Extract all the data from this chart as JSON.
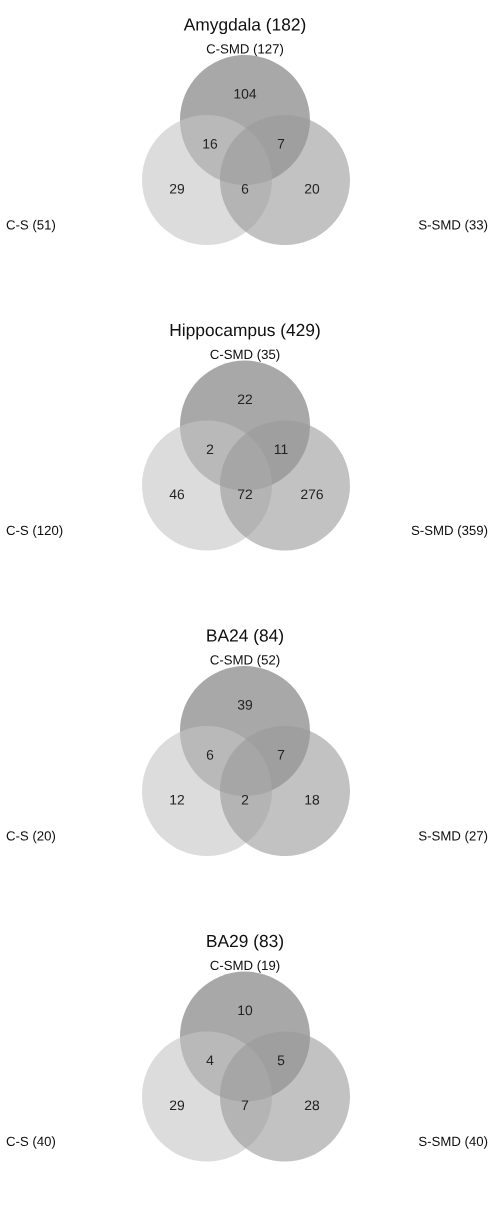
{
  "chart_data": [
    {
      "type": "other",
      "title": "Amygdala (182)",
      "annotations": [
        "C-SMD (127)",
        "C-S (51)",
        "S-SMD (33)"
      ],
      "categories": [
        null,
        null,
        null,
        null,
        null,
        null
      ],
      "data_labels": true,
      "values": [
        104,
        16,
        7,
        29,
        6,
        20
      ]
    },
    {
      "type": "other",
      "title": "Hippocampus (429)",
      "annotations": [
        "C-SMD (35)",
        "C-S (120)",
        "S-SMD (359)"
      ],
      "categories": [
        null,
        null,
        null,
        null,
        null,
        null
      ],
      "data_labels": true,
      "values": [
        22,
        2,
        11,
        46,
        72,
        276
      ]
    },
    {
      "type": "other",
      "title": "BA24 (84)",
      "annotations": [
        "C-SMD (52)",
        "C-S (20)",
        "S-SMD (27)"
      ],
      "categories": [
        null,
        null,
        null,
        null,
        null,
        null
      ],
      "data_labels": true,
      "values": [
        39,
        6,
        7,
        12,
        2,
        18
      ]
    },
    {
      "type": "other",
      "title": "BA29 (83)",
      "annotations": [
        "C-SMD (19)",
        "C-S (40)",
        "S-SMD (40)"
      ],
      "categories": [
        null,
        null,
        null,
        null,
        null,
        null
      ],
      "data_labels": true,
      "values": [
        10,
        4,
        5,
        29,
        7,
        28
      ]
    }
  ]
}
